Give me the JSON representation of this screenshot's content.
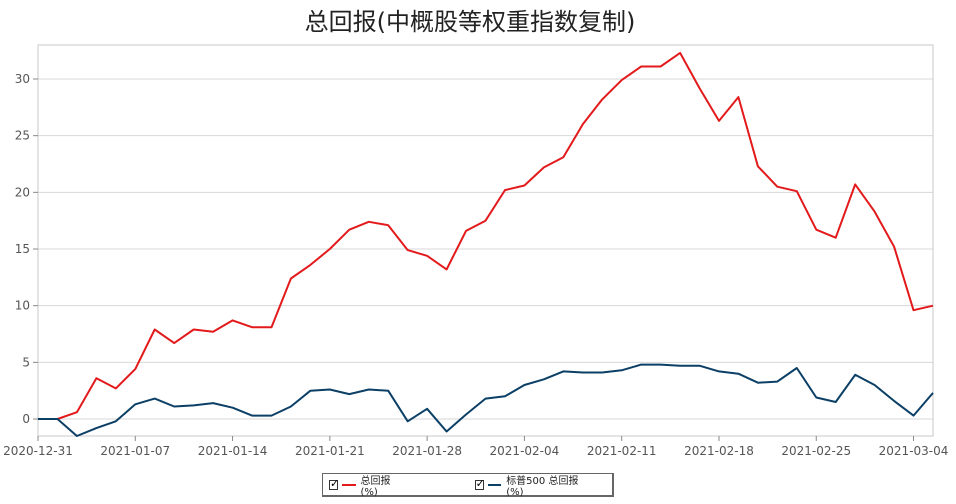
{
  "chart_data": {
    "type": "line",
    "title": "总回报(中概股等权重指数复制)",
    "xlabel": "",
    "ylabel": "",
    "ylim": [
      -1.5,
      33
    ],
    "yticks": [
      0,
      5,
      10,
      15,
      20,
      25,
      30
    ],
    "x_tick_labels": [
      "2020-12-31",
      "2021-01-07",
      "2021-01-14",
      "2021-01-21",
      "2021-01-28",
      "2021-02-04",
      "2021-02-11",
      "2021-02-18",
      "2021-02-25",
      "2021-03-04"
    ],
    "grid": true,
    "legend_position": "bottom-center",
    "x": [
      "2020-12-31",
      "2021-01-01",
      "2021-01-04",
      "2021-01-05",
      "2021-01-06",
      "2021-01-07",
      "2021-01-08",
      "2021-01-11",
      "2021-01-12",
      "2021-01-13",
      "2021-01-14",
      "2021-01-15",
      "2021-01-18",
      "2021-01-19",
      "2021-01-20",
      "2021-01-21",
      "2021-01-22",
      "2021-01-25",
      "2021-01-26",
      "2021-01-27",
      "2021-01-28",
      "2021-01-29",
      "2021-02-01",
      "2021-02-02",
      "2021-02-03",
      "2021-02-04",
      "2021-02-05",
      "2021-02-08",
      "2021-02-09",
      "2021-02-10",
      "2021-02-11",
      "2021-02-12",
      "2021-02-15",
      "2021-02-16",
      "2021-02-17",
      "2021-02-18",
      "2021-02-19",
      "2021-02-22",
      "2021-02-23",
      "2021-02-24",
      "2021-02-25",
      "2021-02-26",
      "2021-03-01",
      "2021-03-02",
      "2021-03-03",
      "2021-03-04",
      "2021-03-05"
    ],
    "series": [
      {
        "name": "总回报(%)",
        "color": "#e31a1c",
        "values": [
          0,
          0,
          0.6,
          3.6,
          2.7,
          4.4,
          7.9,
          6.7,
          7.9,
          7.7,
          8.7,
          8.1,
          8.1,
          12.4,
          13.6,
          15.0,
          16.7,
          17.4,
          17.1,
          14.9,
          14.4,
          13.2,
          16.6,
          17.5,
          20.2,
          20.6,
          22.2,
          23.1,
          26.0,
          28.2,
          29.9,
          31.1,
          31.1,
          32.3,
          29.2,
          26.3,
          28.4,
          22.3,
          20.5,
          20.1,
          16.7,
          16.0,
          20.7,
          18.3,
          15.2,
          9.6,
          10.0
        ]
      },
      {
        "name": "标普500 总回报(%)",
        "color": "#0b3f66",
        "values": [
          0,
          0,
          -1.5,
          -0.8,
          -0.2,
          1.3,
          1.8,
          1.1,
          1.2,
          1.4,
          1.0,
          0.3,
          0.3,
          1.1,
          2.5,
          2.6,
          2.2,
          2.6,
          2.5,
          -0.2,
          0.9,
          -1.1,
          0.4,
          1.8,
          2.0,
          3.0,
          3.5,
          4.2,
          4.1,
          4.1,
          4.3,
          4.8,
          4.8,
          4.7,
          4.7,
          4.2,
          4.0,
          3.2,
          3.3,
          4.5,
          1.9,
          1.5,
          3.9,
          3.0,
          1.6,
          0.3,
          2.3
        ]
      }
    ]
  }
}
